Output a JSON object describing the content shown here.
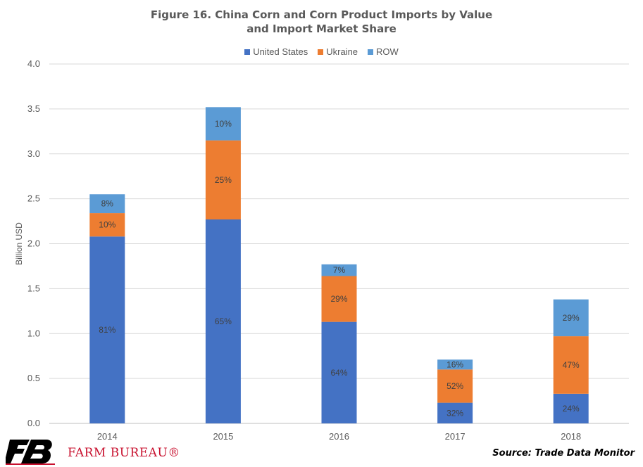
{
  "title_line1": "Figure 16. China Corn and Corn Product Imports by Value",
  "title_line2": "and Import Market Share",
  "colors": {
    "united_states": "#4472c4",
    "ukraine": "#ed7d31",
    "row": "#5b9bd5",
    "grid": "#d9d9d9",
    "brand_red": "#c8102e"
  },
  "logo_text": "FARM BUREAU®",
  "source": "Source: Trade Data Monitor",
  "chart_data": {
    "type": "bar",
    "stacked": true,
    "title": "Figure 16. China Corn and Corn Product Imports by Value and Import Market Share",
    "xlabel": "",
    "ylabel": "Billion USD",
    "ylim": [
      0,
      4.0
    ],
    "yticks": [
      "0.0",
      "0.5",
      "1.0",
      "1.5",
      "2.0",
      "2.5",
      "3.0",
      "3.5",
      "4.0"
    ],
    "grid": true,
    "legend_position": "top",
    "categories": [
      "2014",
      "2015",
      "2016",
      "2017",
      "2018"
    ],
    "series": [
      {
        "name": "United States",
        "color": "#4472c4",
        "values": [
          2.08,
          2.27,
          1.13,
          0.23,
          0.33
        ],
        "labels": [
          "81%",
          "65%",
          "64%",
          "32%",
          "24%"
        ]
      },
      {
        "name": "Ukraine",
        "color": "#ed7d31",
        "values": [
          0.26,
          0.88,
          0.51,
          0.37,
          0.64
        ],
        "labels": [
          "10%",
          "25%",
          "29%",
          "52%",
          "47%"
        ]
      },
      {
        "name": "ROW",
        "color": "#5b9bd5",
        "values": [
          0.21,
          0.37,
          0.13,
          0.11,
          0.41
        ],
        "labels": [
          "8%",
          "10%",
          "7%",
          "16%",
          "29%"
        ]
      }
    ]
  }
}
